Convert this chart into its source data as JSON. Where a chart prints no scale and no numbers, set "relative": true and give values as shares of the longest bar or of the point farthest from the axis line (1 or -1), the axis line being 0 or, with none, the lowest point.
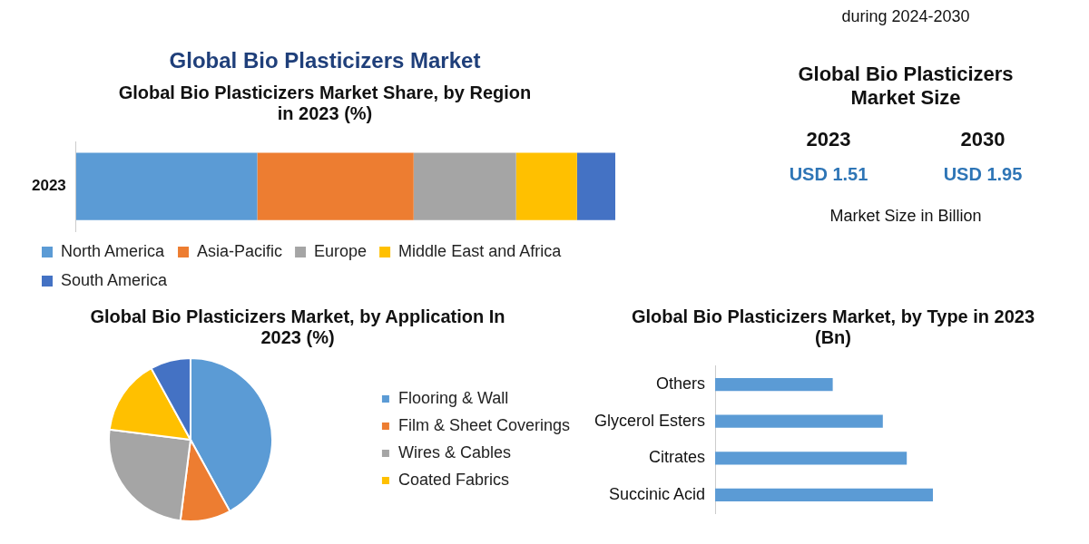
{
  "chart_data": [
    {
      "type": "bar",
      "title": "Global Bio Plasticizers Market",
      "subtitle": "Global Bio Plasticizers Market Share, by Region in 2023 (%)",
      "categories": [
        "2023"
      ],
      "orientation": "horizontal",
      "stacked": true,
      "relative": true,
      "legend": "bottom",
      "series": [
        {
          "name": "North America",
          "color": "#5b9bd5",
          "values": [
            0.336
          ]
        },
        {
          "name": "Asia-Pacific",
          "color": "#ed7d31",
          "values": [
            0.29
          ]
        },
        {
          "name": "Europe",
          "color": "#a5a5a5",
          "values": [
            0.19
          ]
        },
        {
          "name": "Middle East and Africa",
          "color": "#ffc000",
          "values": [
            0.113
          ]
        },
        {
          "name": "South America",
          "color": "#4472c4",
          "values": [
            0.071
          ]
        }
      ]
    },
    {
      "type": "pie",
      "title": "Global Bio Plasticizers Market, by Application In 2023 (%)",
      "categories": [
        "Flooring & Wall",
        "Film & Sheet Coverings",
        "Wires & Cables",
        "Coated Fabrics",
        null
      ],
      "values": [
        42,
        10,
        25,
        15,
        8
      ],
      "colors": [
        "#5b9bd5",
        "#ed7d31",
        "#a5a5a5",
        "#ffc000",
        "#4472c4"
      ],
      "legend": "right"
    },
    {
      "type": "bar",
      "title": "Global Bio Plasticizers Market, by Type in 2023 (Bn)",
      "categories": [
        "Others",
        "Glycerol Esters",
        "Citrates",
        "Succinic Acid"
      ],
      "values": [
        0.54,
        0.77,
        0.88,
        1
      ],
      "color": "#5b9bd5",
      "orientation": "horizontal",
      "relative": true
    },
    {
      "type": "other",
      "title": "Global Bio Plasticizers Market Size",
      "categories": [
        "2023",
        "2030"
      ],
      "values": [
        1.51,
        1.95
      ],
      "value_labels": [
        "USD 1.51",
        "USD 1.95"
      ],
      "annotations": [
        "Market Size in Billion",
        "during 2024-2030"
      ]
    }
  ]
}
